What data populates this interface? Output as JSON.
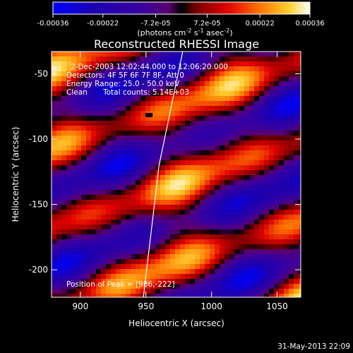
{
  "chart_data": {
    "type": "heatmap",
    "title": "Reconstructed RHESSI Image",
    "xlabel": "Heliocentric X (arcsec)",
    "ylabel": "Heliocentric Y (arcsec)",
    "xlim": [
      878,
      1068
    ],
    "ylim": [
      -221,
      -33
    ],
    "x_ticks": [
      900,
      950,
      1000,
      1050
    ],
    "y_ticks": [
      -50,
      -100,
      -150,
      -200
    ],
    "colorbar": {
      "range": [
        -0.00036,
        0.00036
      ],
      "tick_labels": [
        "-0.00036",
        "-0.00022",
        "-7.2e-05",
        "7.2e-05",
        "0.00022",
        "0.00036"
      ],
      "unit_parts": [
        "(photons cm",
        "-2",
        " s",
        "-1",
        " asec",
        "-2",
        ")"
      ]
    },
    "annotations": {
      "line1": "2-Dec-2003 12:02:44.000 to 12:06:20.000",
      "line2": "Detectors: 4F 5F 6F 7F 8F, Att 0",
      "line3": "Energy Range: 25.0 - 50.0 keV",
      "line4_a": "Clean",
      "line4_b": "Total counts: 5.14E+03",
      "peak": "Position of Peak = [986,-222]"
    },
    "limb": [
      [
        978,
        -33
      ],
      [
        960,
        -120
      ],
      [
        948,
        -221
      ]
    ],
    "timestamp": "31-May-2013 22:09",
    "colors": {
      "background": "#000000",
      "foreground": "#ffffff"
    }
  }
}
